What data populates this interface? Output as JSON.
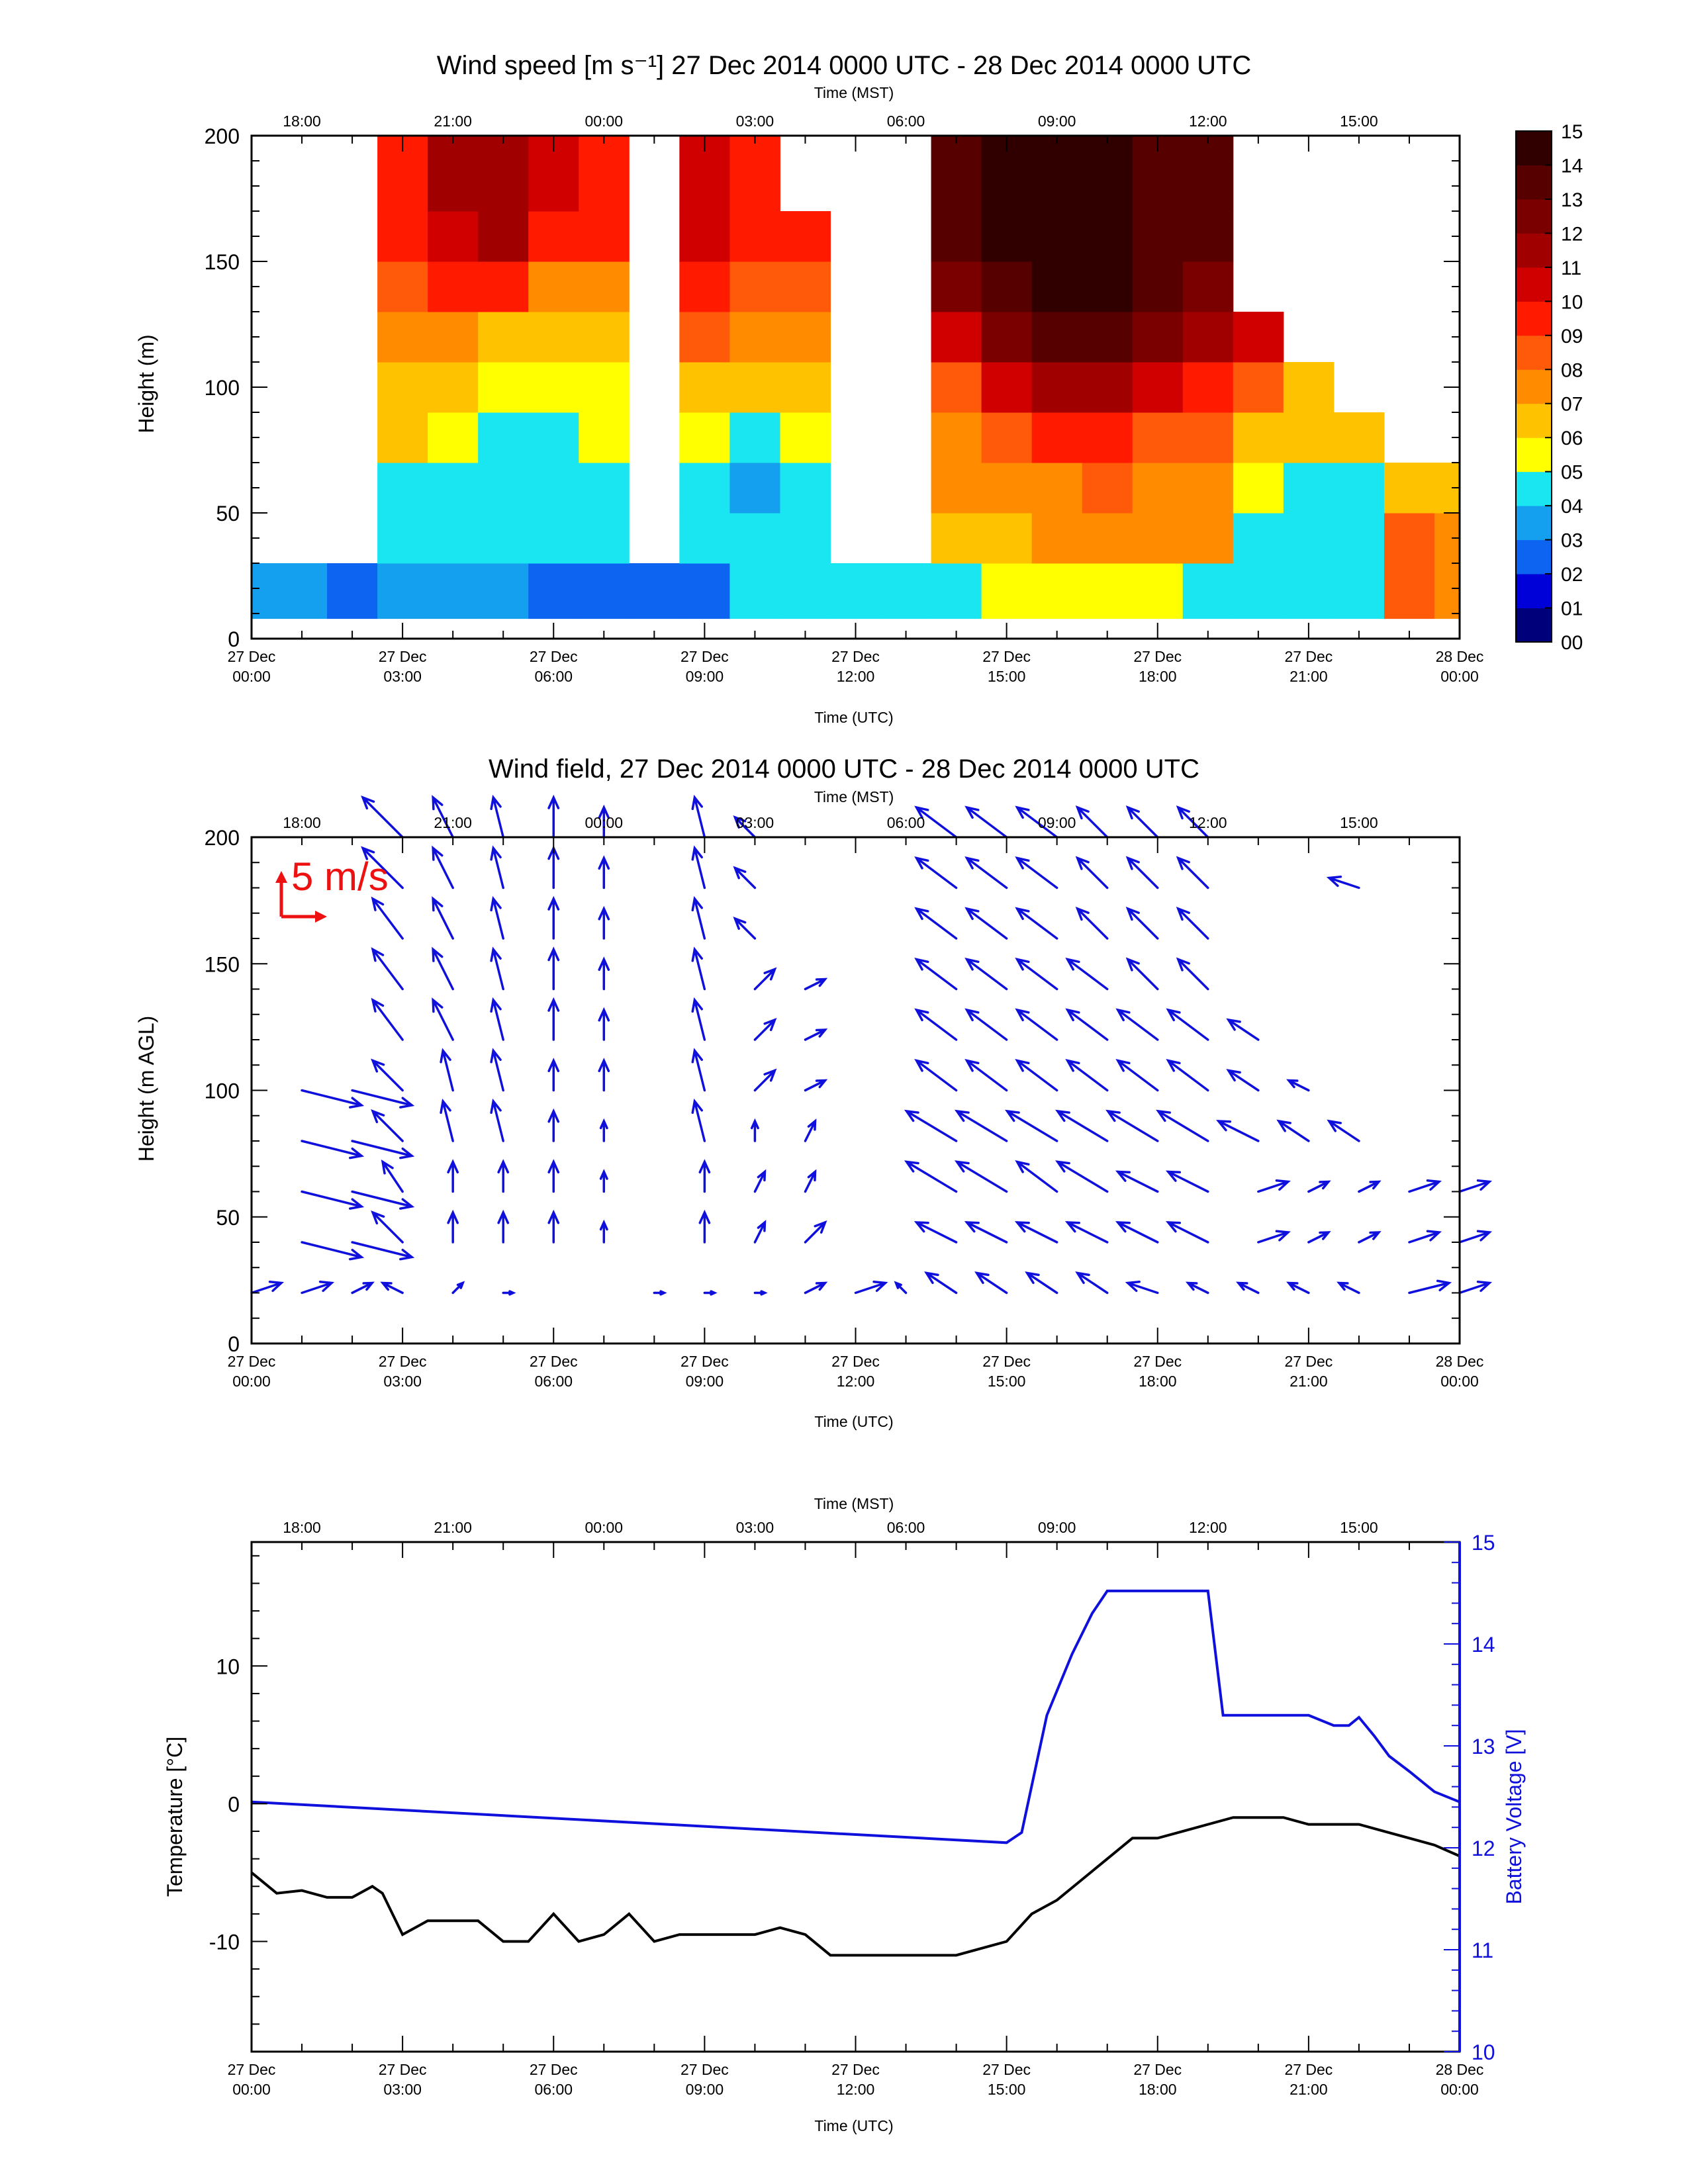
{
  "panel1": {
    "title": "Wind speed [m s⁻¹] 27 Dec 2014 0000 UTC - 28 Dec 2014 0000 UTC",
    "top_axis_label": "Time (MST)",
    "top_ticks": [
      "18:00",
      "21:00",
      "00:00",
      "03:00",
      "06:00",
      "09:00",
      "12:00",
      "15:00"
    ],
    "ylabel": "Height (m)",
    "yticks": [
      "0",
      "50",
      "100",
      "150",
      "200"
    ],
    "xlabel": "Time (UTC)",
    "colorbar_labels": [
      "15",
      "14",
      "13",
      "12",
      "11",
      "10",
      "09",
      "08",
      "07",
      "06",
      "05",
      "04",
      "03",
      "02",
      "01",
      "00"
    ]
  },
  "panel2": {
    "title": "Wind field, 27 Dec 2014 0000 UTC - 28 Dec 2014 0000 UTC",
    "top_axis_label": "Time (MST)",
    "top_ticks": [
      "18:00",
      "21:00",
      "00:00",
      "03:00",
      "06:00",
      "09:00",
      "12:00",
      "15:00"
    ],
    "ylabel": "Height (m AGL)",
    "yticks": [
      "0",
      "50",
      "100",
      "150",
      "200"
    ],
    "xlabel": "Time (UTC)",
    "scale_label": "5 m/s"
  },
  "panel3": {
    "top_axis_label": "Time (MST)",
    "top_ticks": [
      "18:00",
      "21:00",
      "00:00",
      "03:00",
      "06:00",
      "09:00",
      "12:00",
      "15:00"
    ],
    "ylabel_left": "Temperature [°C]",
    "ylabel_right": "Battery Voltage [V]",
    "yticks_left": [
      "10",
      "0",
      "-10"
    ],
    "yticks_right": [
      "15",
      "14",
      "13",
      "12",
      "11",
      "10"
    ],
    "xlabel": "Time (UTC)"
  },
  "bottom_ticks": [
    [
      "27 Dec",
      "00:00"
    ],
    [
      "27 Dec",
      "03:00"
    ],
    [
      "27 Dec",
      "06:00"
    ],
    [
      "27 Dec",
      "09:00"
    ],
    [
      "27 Dec",
      "12:00"
    ],
    [
      "27 Dec",
      "15:00"
    ],
    [
      "27 Dec",
      "18:00"
    ],
    [
      "27 Dec",
      "21:00"
    ],
    [
      "28 Dec",
      "00:00"
    ]
  ],
  "colors": {
    "wind_arrow": "#1010dd",
    "scale_arrow": "#ee1111",
    "temperature": "#000000",
    "voltage": "#1010dd",
    "colorscale": [
      "#00007a",
      "#0000d8",
      "#0c64f0",
      "#14a0ee",
      "#19e6f0",
      "#ffff00",
      "#ffc200",
      "#ff8c00",
      "#ff5a0a",
      "#ff1a00",
      "#d00000",
      "#a00000",
      "#7a0000",
      "#560000",
      "#300000"
    ]
  },
  "chart_data": [
    {
      "type": "heatmap",
      "title": "Wind speed [m s-1] 27 Dec 2014 0000 UTC - 28 Dec 2014 0000 UTC",
      "xlabel": "Time (UTC)",
      "ylabel": "Height (m)",
      "xlim_hours": [
        0,
        24
      ],
      "ylim": [
        0,
        200
      ],
      "colorbar_range": [
        0,
        15
      ],
      "times_utc_hours": [
        0,
        1,
        2,
        3,
        4,
        5,
        6,
        7,
        8,
        9,
        10,
        11,
        12,
        13,
        14,
        15,
        16,
        17,
        18,
        19,
        20,
        21,
        22,
        23,
        24
      ],
      "heights_m": [
        20,
        40,
        60,
        80,
        100,
        120,
        140,
        160,
        180,
        200
      ],
      "speed": [
        [
          3,
          3,
          2.5,
          3,
          3,
          3,
          2,
          2,
          2,
          2,
          4,
          4,
          4,
          4,
          4,
          5,
          5,
          5,
          5,
          4,
          4,
          4,
          4,
          8,
          7
        ],
        [
          null,
          null,
          null,
          4,
          4,
          4,
          4,
          4,
          null,
          4,
          4,
          4,
          null,
          null,
          6,
          6,
          7,
          7,
          7,
          7,
          4,
          4,
          4,
          8,
          7
        ],
        [
          null,
          null,
          null,
          4,
          4,
          4,
          4,
          4,
          null,
          4,
          3,
          4,
          null,
          null,
          7,
          7,
          7,
          8,
          7,
          7,
          5,
          4,
          4,
          6,
          6
        ],
        [
          null,
          null,
          null,
          6,
          5,
          4,
          4,
          5,
          null,
          5,
          4,
          5,
          null,
          null,
          7,
          8,
          9,
          9,
          8,
          8,
          6,
          6,
          6,
          null,
          null
        ],
        [
          null,
          null,
          null,
          6,
          6,
          5,
          5,
          5,
          null,
          6,
          6,
          6,
          null,
          null,
          8,
          10,
          11,
          11,
          10,
          9,
          8,
          6,
          null,
          null,
          null
        ],
        [
          null,
          null,
          null,
          7,
          7,
          6,
          6,
          6,
          null,
          8,
          7,
          7,
          null,
          null,
          10,
          12,
          13,
          13,
          12,
          11,
          10,
          null,
          null,
          null,
          null
        ],
        [
          null,
          null,
          null,
          8,
          9,
          9,
          7,
          7,
          null,
          9,
          8,
          8,
          null,
          null,
          12,
          13,
          14,
          14,
          13,
          12,
          null,
          null,
          null,
          null,
          null
        ],
        [
          null,
          null,
          null,
          9,
          10,
          11,
          9,
          9,
          null,
          10,
          9,
          9,
          null,
          null,
          13,
          14,
          14,
          14,
          13,
          13,
          null,
          null,
          null,
          null,
          null
        ],
        [
          null,
          null,
          null,
          9,
          11,
          11,
          10,
          9,
          null,
          10,
          9,
          null,
          null,
          null,
          13,
          14,
          14,
          14,
          13,
          13,
          null,
          null,
          null,
          null,
          null
        ],
        [
          null,
          null,
          null,
          9,
          11,
          11,
          10,
          9,
          null,
          10,
          9,
          null,
          null,
          null,
          13,
          14,
          14,
          14,
          13,
          13,
          null,
          null,
          null,
          null,
          null
        ]
      ]
    },
    {
      "type": "scatter",
      "subtype": "vector_field",
      "title": "Wind field, 27 Dec 2014 0000 UTC - 28 Dec 2014 0000 UTC",
      "xlabel": "Time (UTC)",
      "ylabel": "Height (m AGL)",
      "xlim_hours": [
        0,
        24
      ],
      "ylim": [
        0,
        200
      ],
      "scale_m_s": 5,
      "times_utc_hours": [
        0,
        1,
        2,
        3,
        4,
        5,
        6,
        7,
        8,
        9,
        10,
        11,
        12,
        13,
        14,
        15,
        16,
        17,
        18,
        19,
        20,
        21,
        22,
        23,
        24
      ],
      "heights_m": [
        20,
        40,
        60,
        80,
        100,
        120,
        140,
        160,
        180,
        200
      ],
      "u": [
        [
          3,
          3,
          2,
          -2,
          1,
          1,
          0,
          0,
          1,
          1,
          1,
          2,
          3,
          -1,
          -3,
          -3,
          -3,
          -3,
          -3,
          -2,
          -2,
          -2,
          -2,
          4,
          3
        ],
        [
          null,
          6,
          6,
          -3,
          0,
          0,
          0,
          0,
          null,
          0,
          1,
          2,
          null,
          null,
          -4,
          -4,
          -4,
          -4,
          -4,
          -4,
          3,
          2,
          2,
          3,
          3
        ],
        [
          null,
          6,
          6,
          -2,
          0,
          0,
          0,
          0,
          null,
          0,
          1,
          1,
          null,
          null,
          -5,
          -5,
          -4,
          -5,
          -4,
          -4,
          3,
          2,
          2,
          3,
          3
        ],
        [
          null,
          6,
          6,
          -3,
          -1,
          -1,
          0,
          0,
          null,
          -1,
          0,
          1,
          null,
          null,
          -5,
          -5,
          -5,
          -5,
          -5,
          -5,
          -4,
          -3,
          -3,
          null,
          null
        ],
        [
          null,
          6,
          6,
          -3,
          -1,
          -1,
          0,
          0,
          null,
          -1,
          2,
          2,
          null,
          null,
          -4,
          -4,
          -4,
          -4,
          -4,
          -4,
          -3,
          -2,
          null,
          null,
          null
        ],
        [
          null,
          null,
          null,
          -3,
          -2,
          -1,
          0,
          0,
          null,
          -1,
          2,
          2,
          null,
          null,
          -4,
          -4,
          -4,
          -4,
          -4,
          -4,
          -3,
          null,
          null,
          null,
          null
        ],
        [
          null,
          null,
          null,
          -3,
          -2,
          -1,
          0,
          0,
          null,
          -1,
          2,
          2,
          null,
          null,
          -4,
          -4,
          -4,
          -4,
          -3,
          -3,
          null,
          null,
          null,
          null,
          null
        ],
        [
          null,
          null,
          null,
          -3,
          -2,
          -1,
          0,
          0,
          null,
          -1,
          -2,
          null,
          null,
          null,
          -4,
          -4,
          -4,
          -3,
          -3,
          -3,
          null,
          null,
          null,
          null,
          null
        ],
        [
          null,
          null,
          null,
          -4,
          -2,
          -1,
          0,
          0,
          null,
          -1,
          -2,
          null,
          null,
          null,
          -4,
          -4,
          -4,
          -3,
          -3,
          -3,
          null,
          null,
          -3,
          null,
          null
        ],
        [
          null,
          null,
          null,
          -4,
          -2,
          -1,
          0,
          0,
          null,
          -1,
          -2,
          null,
          null,
          null,
          -4,
          -4,
          -4,
          -3,
          -3,
          -3,
          null,
          null,
          null,
          null,
          null
        ]
      ],
      "v": [
        [
          1,
          1,
          1,
          1,
          1,
          0,
          0,
          0,
          0,
          0,
          0,
          1,
          1,
          1,
          2,
          2,
          2,
          2,
          1,
          1,
          1,
          1,
          1,
          1,
          1
        ],
        [
          null,
          -1.5,
          -1.5,
          3,
          3,
          3,
          3,
          2,
          null,
          3,
          2,
          2,
          null,
          null,
          2,
          2,
          2,
          2,
          2,
          2,
          1,
          1,
          1,
          1,
          1
        ],
        [
          null,
          -1.5,
          -1.5,
          3,
          3,
          3,
          3,
          2,
          null,
          3,
          2,
          2,
          null,
          null,
          3,
          3,
          3,
          3,
          2,
          2,
          1,
          1,
          1,
          1,
          1
        ],
        [
          null,
          -1.5,
          -1.5,
          3,
          4,
          4,
          3,
          2,
          null,
          4,
          2,
          2,
          null,
          null,
          3,
          3,
          3,
          3,
          3,
          3,
          2,
          2,
          2,
          null,
          null
        ],
        [
          null,
          -1.5,
          -1.5,
          3,
          4,
          4,
          3,
          3,
          null,
          4,
          2,
          1,
          null,
          null,
          3,
          3,
          3,
          3,
          3,
          3,
          2,
          1,
          null,
          null,
          null
        ],
        [
          null,
          null,
          null,
          4,
          4,
          4,
          4,
          3,
          null,
          4,
          2,
          1,
          null,
          null,
          3,
          3,
          3,
          3,
          3,
          3,
          2,
          null,
          null,
          null,
          null
        ],
        [
          null,
          null,
          null,
          4,
          4,
          4,
          4,
          3,
          null,
          4,
          2,
          1,
          null,
          null,
          3,
          3,
          3,
          3,
          3,
          3,
          null,
          null,
          null,
          null,
          null
        ],
        [
          null,
          null,
          null,
          4,
          4,
          4,
          4,
          3,
          null,
          4,
          2,
          null,
          null,
          null,
          3,
          3,
          3,
          3,
          3,
          3,
          null,
          null,
          null,
          null,
          null
        ],
        [
          null,
          null,
          null,
          4,
          4,
          4,
          4,
          3,
          null,
          4,
          2,
          null,
          null,
          null,
          3,
          3,
          3,
          3,
          3,
          3,
          null,
          null,
          1,
          null,
          null
        ],
        [
          null,
          null,
          null,
          4,
          4,
          4,
          4,
          3,
          null,
          4,
          2,
          null,
          null,
          null,
          3,
          3,
          3,
          3,
          3,
          3,
          null,
          null,
          null,
          null,
          null
        ]
      ]
    },
    {
      "type": "line",
      "xlabel": "Time (UTC)",
      "xlim_hours": [
        0,
        24
      ],
      "series": [
        {
          "name": "Temperature [°C]",
          "axis": "left",
          "ylim": [
            -18,
            19
          ],
          "x": [
            0,
            0.5,
            1,
            1.5,
            2,
            2.4,
            2.6,
            3,
            3.5,
            4,
            4.5,
            5,
            5.5,
            6,
            6.5,
            7,
            7.5,
            8,
            8.5,
            9,
            9.5,
            10,
            10.5,
            11,
            11.5,
            12,
            13,
            14,
            15,
            15.5,
            16,
            16.5,
            17,
            17.5,
            18,
            18.5,
            19,
            19.5,
            20,
            20.5,
            21,
            21.5,
            22,
            22.5,
            23,
            23.5,
            24
          ],
          "y": [
            -5,
            -6.5,
            -6.3,
            -6.8,
            -6.8,
            -6,
            -6.5,
            -9.5,
            -8.5,
            -8.5,
            -8.5,
            -10,
            -10,
            -8,
            -10,
            -9.5,
            -8,
            -10,
            -9.5,
            -9.5,
            -9.5,
            -9.5,
            -9,
            -9.5,
            -11,
            -11,
            -11,
            -11,
            -10,
            -8,
            -7,
            -5.5,
            -4,
            -2.5,
            -2.5,
            -2,
            -1.5,
            -1,
            -1,
            -1,
            -1.5,
            -1.5,
            -1.5,
            -2,
            -2.5,
            -3,
            -3.8
          ]
        },
        {
          "name": "Battery Voltage [V]",
          "axis": "right",
          "ylim": [
            10,
            15
          ],
          "x": [
            0,
            15,
            15.3,
            15.8,
            16.3,
            16.7,
            17,
            17.5,
            18,
            18.5,
            19,
            19.3,
            19.6,
            20,
            21,
            21.5,
            21.8,
            22,
            22.3,
            22.6,
            23,
            23.5,
            24
          ],
          "y": [
            12.45,
            12.05,
            12.15,
            13.3,
            13.9,
            14.3,
            14.52,
            14.52,
            14.52,
            14.52,
            14.52,
            13.3,
            13.3,
            13.3,
            13.3,
            13.2,
            13.2,
            13.28,
            13.1,
            12.9,
            12.75,
            12.55,
            12.45
          ]
        }
      ]
    }
  ]
}
